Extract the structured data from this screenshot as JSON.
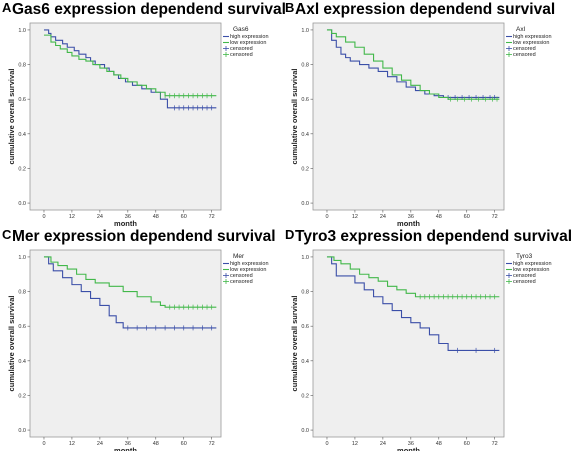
{
  "colors": {
    "high": "#3b4fa8",
    "low": "#42b84a",
    "plot_bg": "#efefef",
    "frame": "#9a9a9a"
  },
  "chart_data": [
    {
      "type": "line",
      "letter": "A",
      "title": "Gas6 expression dependend survival",
      "xlabel": "month",
      "ylabel": "cumulative overall survival",
      "xlim": [
        -6,
        76
      ],
      "ylim": [
        -0.04,
        1.04
      ],
      "x_ticks": [
        0,
        12,
        24,
        36,
        48,
        60,
        72
      ],
      "y_ticks": [
        "0.0",
        "0.2",
        "0.4",
        "0.6",
        "0.8",
        "1.0"
      ],
      "legend": {
        "title": "Gas6",
        "position": "top-right",
        "entries": [
          "high expression",
          "low expression",
          "censored",
          "censored"
        ]
      },
      "series": [
        {
          "name": "high expression",
          "x": [
            0,
            2,
            3,
            5,
            8,
            10,
            13,
            15,
            18,
            20,
            22,
            26,
            28,
            30,
            32,
            35,
            38,
            42,
            46,
            50,
            53,
            74
          ],
          "y": [
            1.0,
            0.98,
            0.96,
            0.94,
            0.92,
            0.9,
            0.88,
            0.86,
            0.84,
            0.82,
            0.8,
            0.78,
            0.76,
            0.74,
            0.72,
            0.7,
            0.68,
            0.66,
            0.64,
            0.6,
            0.55,
            0.55
          ],
          "censored_x": [
            56,
            58,
            60,
            62,
            64,
            66,
            68,
            70,
            72
          ]
        },
        {
          "name": "low expression",
          "x": [
            0,
            3,
            5,
            7,
            10,
            12,
            15,
            18,
            21,
            24,
            27,
            30,
            33,
            36,
            40,
            44,
            48,
            52,
            74
          ],
          "y": [
            0.97,
            0.93,
            0.91,
            0.89,
            0.87,
            0.85,
            0.83,
            0.82,
            0.8,
            0.78,
            0.76,
            0.74,
            0.72,
            0.7,
            0.68,
            0.66,
            0.64,
            0.62,
            0.62
          ],
          "censored_x": [
            50,
            52,
            54,
            56,
            58,
            60,
            62,
            64,
            66,
            68,
            70,
            72
          ]
        }
      ]
    },
    {
      "type": "line",
      "letter": "B",
      "title": "Axl expression dependend survival",
      "xlabel": "month",
      "ylabel": "cumulative overall survival",
      "xlim": [
        -6,
        76
      ],
      "ylim": [
        -0.04,
        1.04
      ],
      "x_ticks": [
        0,
        12,
        24,
        36,
        48,
        60,
        72
      ],
      "y_ticks": [
        "0.0",
        "0.2",
        "0.4",
        "0.6",
        "0.8",
        "1.0"
      ],
      "legend": {
        "title": "Axl",
        "position": "top-right",
        "entries": [
          "high expression",
          "low expression",
          "censored",
          "censored"
        ]
      },
      "series": [
        {
          "name": "high expression",
          "x": [
            0,
            2,
            4,
            6,
            8,
            10,
            14,
            18,
            22,
            26,
            30,
            34,
            38,
            42,
            46,
            50,
            74
          ],
          "y": [
            1.0,
            0.94,
            0.9,
            0.86,
            0.84,
            0.82,
            0.8,
            0.78,
            0.76,
            0.73,
            0.7,
            0.67,
            0.65,
            0.63,
            0.62,
            0.61,
            0.61
          ],
          "censored_x": [
            52,
            55,
            58,
            61,
            64,
            67,
            70,
            72
          ]
        },
        {
          "name": "low expression",
          "x": [
            0,
            2,
            4,
            8,
            12,
            16,
            20,
            24,
            28,
            32,
            36,
            40,
            44,
            48,
            52,
            74
          ],
          "y": [
            1.0,
            0.98,
            0.96,
            0.93,
            0.9,
            0.86,
            0.82,
            0.78,
            0.74,
            0.71,
            0.68,
            0.65,
            0.63,
            0.61,
            0.6,
            0.6
          ],
          "censored_x": [
            53,
            56,
            59,
            62,
            65,
            68,
            71,
            73
          ]
        }
      ]
    },
    {
      "type": "line",
      "letter": "C",
      "title": "Mer expression dependend survival",
      "xlabel": "month",
      "ylabel": "cumulative overall survival",
      "xlim": [
        -6,
        76
      ],
      "ylim": [
        -0.04,
        1.04
      ],
      "x_ticks": [
        0,
        12,
        24,
        36,
        48,
        60,
        72
      ],
      "y_ticks": [
        "0.0",
        "0.2",
        "0.4",
        "0.6",
        "0.8",
        "1.0"
      ],
      "legend": {
        "title": "Mer",
        "position": "top-right",
        "entries": [
          "high expression",
          "low expression",
          "censored",
          "censored"
        ]
      },
      "series": [
        {
          "name": "high expression",
          "x": [
            0,
            2,
            4,
            8,
            12,
            16,
            20,
            24,
            28,
            31,
            34,
            74
          ],
          "y": [
            1.0,
            0.96,
            0.92,
            0.88,
            0.84,
            0.8,
            0.76,
            0.72,
            0.66,
            0.62,
            0.59,
            0.59
          ],
          "censored_x": [
            36,
            40,
            44,
            48,
            52,
            56,
            60,
            64,
            68,
            72
          ]
        },
        {
          "name": "low expression",
          "x": [
            0,
            3,
            6,
            10,
            14,
            18,
            22,
            28,
            34,
            40,
            46,
            50,
            52,
            74
          ],
          "y": [
            1.0,
            0.97,
            0.95,
            0.93,
            0.9,
            0.87,
            0.85,
            0.83,
            0.8,
            0.77,
            0.74,
            0.72,
            0.71,
            0.71
          ],
          "censored_x": [
            54,
            56,
            58,
            60,
            62,
            64,
            66,
            68,
            70,
            72
          ]
        }
      ]
    },
    {
      "type": "line",
      "letter": "D",
      "title": "Tyro3 expression dependend survival",
      "xlabel": "month",
      "ylabel": "cumulative overall survival",
      "xlim": [
        -6,
        76
      ],
      "ylim": [
        -0.04,
        1.04
      ],
      "x_ticks": [
        0,
        12,
        24,
        36,
        48,
        60,
        72
      ],
      "y_ticks": [
        "0.0",
        "0.2",
        "0.4",
        "0.6",
        "0.8",
        "1.0"
      ],
      "legend": {
        "title": "Tyro3",
        "position": "top-right",
        "entries": [
          "high expression",
          "low expression",
          "censored",
          "censored"
        ]
      },
      "series": [
        {
          "name": "high expression",
          "x": [
            0,
            2,
            4,
            12,
            16,
            20,
            24,
            28,
            32,
            36,
            40,
            44,
            48,
            52,
            74
          ],
          "y": [
            1.0,
            0.96,
            0.89,
            0.85,
            0.81,
            0.77,
            0.73,
            0.69,
            0.65,
            0.62,
            0.59,
            0.55,
            0.5,
            0.46,
            0.46
          ],
          "censored_x": [
            56,
            64,
            72
          ]
        },
        {
          "name": "low expression",
          "x": [
            0,
            3,
            6,
            10,
            14,
            18,
            22,
            26,
            30,
            34,
            38,
            74
          ],
          "y": [
            1.0,
            0.98,
            0.96,
            0.93,
            0.9,
            0.88,
            0.86,
            0.83,
            0.81,
            0.79,
            0.77,
            0.77
          ],
          "censored_x": [
            40,
            42,
            44,
            46,
            48,
            50,
            52,
            54,
            56,
            58,
            60,
            62,
            64,
            66,
            68,
            70,
            72
          ]
        }
      ]
    }
  ]
}
